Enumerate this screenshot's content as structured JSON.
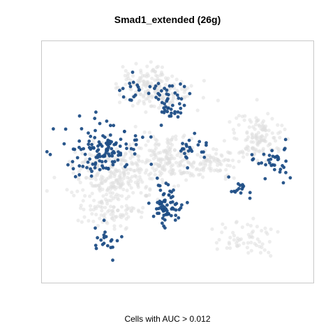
{
  "chart_data": {
    "type": "scatter",
    "title": "Smad1_extended (26g)",
    "xlabel": "Cells with AUC > 0.012",
    "ylabel": "",
    "axes_visible": false,
    "grid": false,
    "legend": "none",
    "colors": {
      "inactive": "#dedede",
      "active": "#1f4e86"
    },
    "series": [
      {
        "name": "",
        "color": "#dedede",
        "regions": [
          {
            "cx": 0.27,
            "cy": 0.55,
            "rx": 0.14,
            "ry": 0.11,
            "n": 260
          },
          {
            "cx": 0.25,
            "cy": 0.7,
            "rx": 0.12,
            "ry": 0.06,
            "n": 90
          },
          {
            "cx": 0.47,
            "cy": 0.48,
            "rx": 0.1,
            "ry": 0.09,
            "n": 160
          },
          {
            "cx": 0.44,
            "cy": 0.22,
            "rx": 0.12,
            "ry": 0.06,
            "n": 80
          },
          {
            "cx": 0.8,
            "cy": 0.4,
            "rx": 0.08,
            "ry": 0.1,
            "n": 130
          },
          {
            "cx": 0.37,
            "cy": 0.18,
            "rx": 0.09,
            "ry": 0.07,
            "n": 110
          },
          {
            "cx": 0.63,
            "cy": 0.5,
            "rx": 0.1,
            "ry": 0.06,
            "n": 80
          },
          {
            "cx": 0.75,
            "cy": 0.82,
            "rx": 0.1,
            "ry": 0.06,
            "n": 60
          }
        ]
      },
      {
        "name": "",
        "color": "#1f4e86",
        "regions": [
          {
            "cx": 0.23,
            "cy": 0.45,
            "rx": 0.12,
            "ry": 0.09,
            "n": 130
          },
          {
            "cx": 0.46,
            "cy": 0.68,
            "rx": 0.05,
            "ry": 0.07,
            "n": 70
          },
          {
            "cx": 0.47,
            "cy": 0.25,
            "rx": 0.05,
            "ry": 0.08,
            "n": 45
          },
          {
            "cx": 0.23,
            "cy": 0.82,
            "rx": 0.05,
            "ry": 0.06,
            "n": 20
          },
          {
            "cx": 0.55,
            "cy": 0.45,
            "rx": 0.06,
            "ry": 0.05,
            "n": 25
          },
          {
            "cx": 0.86,
            "cy": 0.49,
            "rx": 0.06,
            "ry": 0.06,
            "n": 35
          },
          {
            "cx": 0.72,
            "cy": 0.6,
            "rx": 0.05,
            "ry": 0.05,
            "n": 15
          },
          {
            "cx": 0.35,
            "cy": 0.2,
            "rx": 0.08,
            "ry": 0.06,
            "n": 20
          }
        ]
      }
    ]
  },
  "caption": "Cells with AUC > 0.012"
}
